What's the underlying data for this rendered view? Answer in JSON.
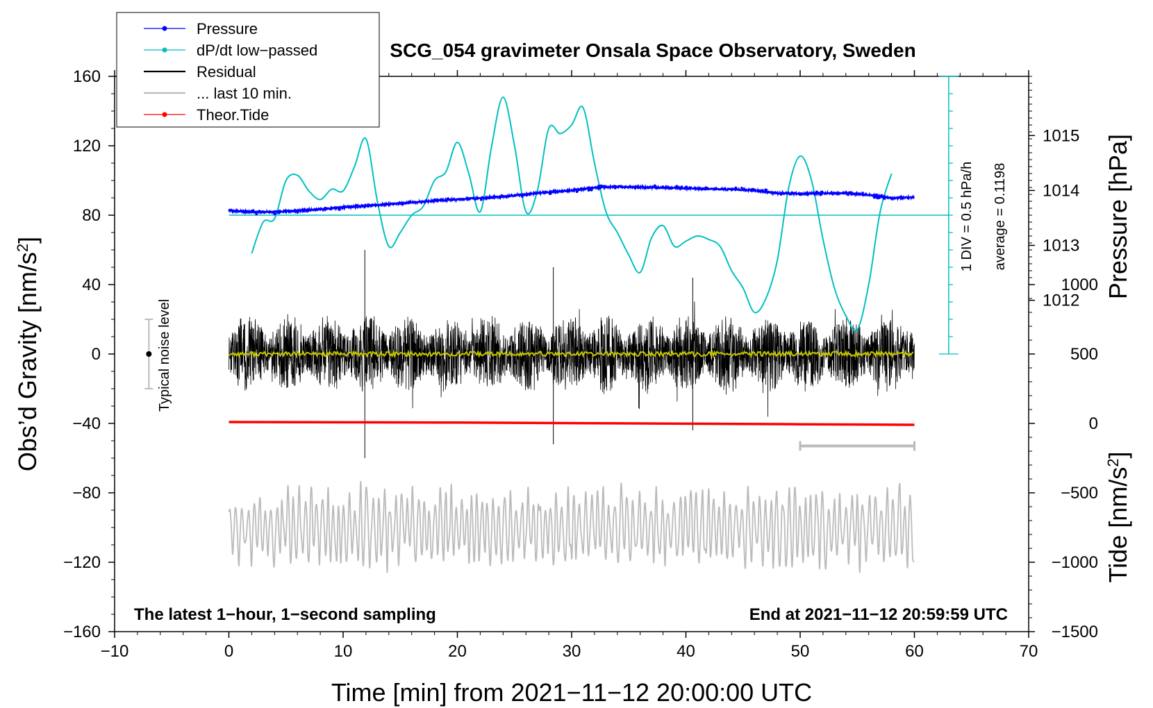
{
  "chart_data": {
    "type": "line",
    "title": "SCG_054 gravimeter Onsala Space Observatory, Sweden",
    "xlabel": "Time [min] from 2021−11−12 20:00:00 UTC",
    "ylabel_main": "Obs’d Gravity [nm/s",
    "ylabel_main_sup": "2",
    "ylabel_main_end": "]",
    "ylabel_pressure": "Pressure [hPa]",
    "ylabel_tide": "Tide [nm/s",
    "ylabel_tide_sup": "2",
    "ylabel_tide_end": "]",
    "xlim": [
      -10,
      70
    ],
    "ylim": [
      -160,
      160
    ],
    "x_ticks": [
      -10,
      0,
      10,
      20,
      30,
      40,
      50,
      60,
      70
    ],
    "x_tick_labels": [
      "−10",
      "0",
      "10",
      "20",
      "30",
      "40",
      "50",
      "60",
      "70"
    ],
    "y_ticks": [
      -160,
      -120,
      -80,
      -40,
      0,
      40,
      80,
      120,
      160
    ],
    "y_tick_labels": [
      "−160",
      "−120",
      "−80",
      "−40",
      "0",
      "40",
      "80",
      "120",
      "160"
    ],
    "pressure_ticks": [
      1012,
      1013,
      1014,
      1015
    ],
    "pressure_tick_labels": [
      "1012",
      "1013",
      "1014",
      "1015"
    ],
    "pressure_axis": {
      "left_value": 80,
      "hpa_per_nm": 0.0316,
      "ref_hpa": 1013.55
    },
    "tide_ticks": [
      -1500,
      -1000,
      -500,
      0,
      500,
      1000
    ],
    "tide_tick_labels": [
      "−1500",
      "−1000",
      "−500",
      "0",
      "500",
      "1000"
    ],
    "tide_axis_map": {
      "tide_at_bottom": -1500,
      "tide_per_nm": 12.5
    },
    "legend": [
      {
        "label": "Pressure",
        "color": "#0000ff",
        "style": "line-dot"
      },
      {
        "label": "dP/dt low−passed",
        "color": "#00c0c0",
        "style": "line-dot"
      },
      {
        "label": "Residual",
        "color": "#000000",
        "style": "line"
      },
      {
        "label": "... last 10 min.",
        "color": "#bbbbbb",
        "style": "line"
      },
      {
        "label": "Theor.Tide",
        "color": "#ff0000",
        "style": "line-dot"
      }
    ],
    "annotations": {
      "noise_label": "Typical noise level",
      "noise_marker": {
        "x": -7,
        "y": 0,
        "err": 20
      },
      "div_label": "1 DIV = 0.5 hPa/h",
      "average_label": "average = 0.1198",
      "bottom_left": "The latest 1−hour, 1−second sampling",
      "bottom_right": "End at 2021−11−12 20:59:59 UTC",
      "last10_bracket": {
        "x_start": 50,
        "x_end": 60,
        "y": -53
      },
      "dpdt_zero_line": {
        "y": 80,
        "x_start": 0,
        "x_end": 63
      },
      "dpdt_scale_bar": {
        "x": 63,
        "y_start": 0,
        "y_end": 160,
        "ticks": 16
      }
    },
    "series": [
      {
        "name": "Pressure",
        "color": "#0000ff",
        "units": "hPa",
        "x": [
          0,
          2,
          4,
          6,
          8,
          10,
          12,
          14,
          16,
          18,
          20,
          22,
          24,
          26,
          28,
          30,
          32,
          34,
          36,
          38,
          40,
          42,
          44,
          46,
          48,
          50,
          52,
          54,
          56,
          58,
          60
        ],
        "values": [
          1013.63,
          1013.61,
          1013.61,
          1013.63,
          1013.66,
          1013.69,
          1013.72,
          1013.75,
          1013.78,
          1013.81,
          1013.84,
          1013.86,
          1013.89,
          1013.93,
          1013.97,
          1014.0,
          1014.05,
          1014.07,
          1014.06,
          1014.05,
          1014.04,
          1014.03,
          1014.02,
          1014.0,
          1013.95,
          1013.94,
          1013.95,
          1013.95,
          1013.92,
          1013.86,
          1013.88
        ]
      },
      {
        "name": "dP/dt low−passed",
        "color": "#00c0c0",
        "units": "nm/s2 plot scale",
        "x": [
          2,
          3,
          4,
          5,
          6,
          7,
          8,
          9,
          10,
          11,
          12,
          13,
          14,
          15,
          16,
          17,
          18,
          19,
          20,
          21,
          22,
          23,
          24,
          25,
          26,
          27,
          28,
          29,
          30,
          31,
          32,
          33,
          34,
          35,
          36,
          37,
          38,
          39,
          40,
          41,
          42,
          43,
          44,
          45,
          46,
          47,
          48,
          49,
          50,
          51,
          52,
          53,
          54,
          55,
          56,
          57,
          58
        ],
        "values": [
          58,
          76,
          78,
          100,
          103,
          94,
          89,
          95,
          94,
          108,
          124,
          88,
          62,
          70,
          80,
          85,
          100,
          105,
          122,
          104,
          82,
          120,
          148,
          120,
          82,
          94,
          130,
          127,
          132,
          142,
          110,
          82,
          70,
          57,
          47,
          67,
          74,
          62,
          65,
          68,
          66,
          62,
          48,
          38,
          24,
          32,
          54,
          96,
          114,
          100,
          66,
          38,
          22,
          14,
          40,
          82,
          104
        ]
      },
      {
        "name": "Residual",
        "color": "#000000",
        "units": "nm/s2",
        "x": [
          0,
          60
        ],
        "amplitude": 22,
        "spikes": [
          {
            "x": 11.9,
            "y": 60
          },
          {
            "x": 11.9,
            "y": -60
          },
          {
            "x": 28.4,
            "y": 50
          },
          {
            "x": 28.4,
            "y": -52
          },
          {
            "x": 40.6,
            "y": 44
          },
          {
            "x": 40.6,
            "y": -44
          }
        ]
      },
      {
        "name": "Residual smoothed",
        "color": "#c8c800",
        "units": "nm/s2",
        "x": [
          0,
          60
        ],
        "values_level": 0
      },
      {
        "name": "... last 10 min.",
        "color": "#bbbbbb",
        "units": "nm/s2",
        "x": [
          0,
          60
        ],
        "center": -100,
        "amplitude": 24
      },
      {
        "name": "Theor.Tide",
        "color": "#ff0000",
        "units": "nm/s2",
        "x": [
          0,
          10,
          20,
          30,
          40,
          50,
          60
        ],
        "values": [
          10,
          8,
          6,
          2,
          -2,
          -6,
          -10
        ]
      }
    ]
  }
}
